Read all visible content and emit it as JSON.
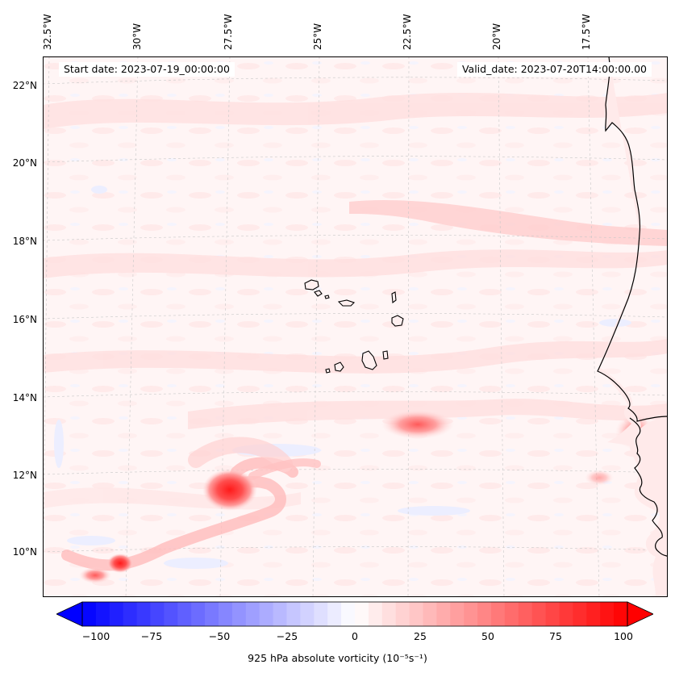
{
  "map": {
    "start_date": "Start date: 2023-07-19_00:00:00",
    "valid_date": "Valid_date: 2023-07-20T14:00:00.00",
    "lon_labels": [
      "32.5°W",
      "30°W",
      "27.5°W",
      "25°W",
      "22.5°W",
      "20°W",
      "17.5°W"
    ],
    "lat_labels": [
      "22°N",
      "20°N",
      "18°N",
      "16°N",
      "14°N",
      "12°N",
      "10°N"
    ],
    "colors": {
      "ocean_bg": "#fff5f5",
      "weak_positive": "#ffe3e3",
      "moderate_positive": "#ffb3b3",
      "strong_positive": "#ff2a2a",
      "weak_negative": "#eef0ff",
      "coastline": "#000000"
    }
  },
  "colorbar": {
    "min": -100,
    "max": 100,
    "ticks": [
      "−100",
      "−75",
      "−50",
      "−25",
      "0",
      "25",
      "50",
      "75",
      "100"
    ],
    "label": "925 hPa absolute vorticity (10⁻⁵s⁻¹)",
    "negative_color": "#0000ff",
    "positive_color": "#ff0000"
  }
}
